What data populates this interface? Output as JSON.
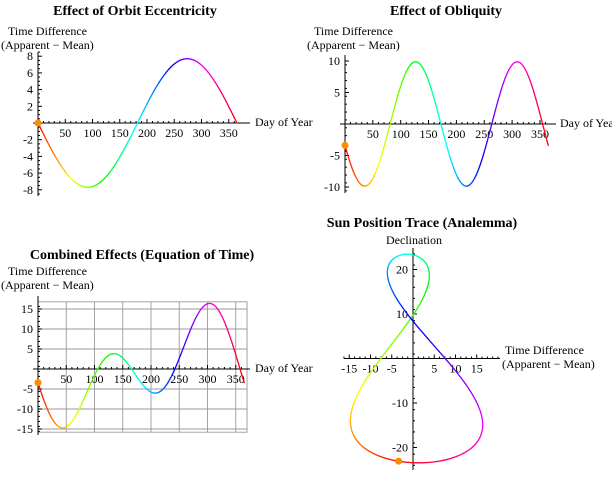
{
  "figure": {
    "background": "#ffffff",
    "text_color": "#000000",
    "axis_color": "#000000",
    "grid_color": "#999999",
    "marker_color": "#FF8C00",
    "color_mode_note": "curves colored by rainbow hue over day of year: day 0 = red, ~60 yellow, ~120 green, ~180 cyan, ~240 blue, ~300 magenta, 365 red"
  },
  "chart_data": [
    {
      "id": "orbit-eccentricity",
      "type": "line",
      "title": "Effect of Orbit Eccentricity",
      "ylabel_lines": [
        "Time Difference",
        "(Apparent − Mean)"
      ],
      "xlabel": "Day of Year",
      "xlim": [
        0,
        365
      ],
      "ylim": [
        -8.5,
        8.5
      ],
      "xticks": [
        50,
        100,
        150,
        200,
        250,
        300,
        350
      ],
      "yticks": [
        -8,
        -6,
        -4,
        -2,
        2,
        4,
        6,
        8
      ],
      "grid": false,
      "domain_days": [
        0,
        365
      ],
      "series": {
        "name": "eccentricity_effect_minutes",
        "terms": [
          {
            "amp": -7.7,
            "period": 365,
            "phase": 0
          }
        ]
      },
      "key_points": [
        [
          0,
          0
        ],
        [
          91,
          -7.7
        ],
        [
          182.5,
          0
        ],
        [
          274,
          7.7
        ],
        [
          365,
          0
        ]
      ],
      "marker": {
        "day": 0,
        "x": 0,
        "y": 0,
        "color": "#FF8C00"
      }
    },
    {
      "id": "obliquity",
      "type": "line",
      "title": "Effect of Obliquity",
      "ylabel_lines": [
        "Time Difference",
        "(Apparent − Mean)"
      ],
      "xlabel": "Day of Year",
      "xlim": [
        0,
        365
      ],
      "ylim": [
        -10.5,
        10.5
      ],
      "xticks": [
        50,
        100,
        150,
        200,
        250,
        300,
        350
      ],
      "yticks": [
        -10,
        -5,
        5,
        10
      ],
      "grid": false,
      "domain_days": [
        0,
        365
      ],
      "series": {
        "name": "obliquity_effect_minutes",
        "terms": [
          {
            "amp": 9.87,
            "period": 182.5,
            "phase": 81
          }
        ]
      },
      "key_points": [
        [
          0,
          -3.4
        ],
        [
          35.5,
          -9.87
        ],
        [
          81,
          0
        ],
        [
          126.5,
          9.87
        ],
        [
          172,
          0
        ],
        [
          217.5,
          -9.87
        ],
        [
          263,
          0
        ],
        [
          308.5,
          9.87
        ],
        [
          354,
          0
        ],
        [
          365,
          -3.4
        ]
      ],
      "marker": {
        "day": 0,
        "x": 0,
        "y": -3.4,
        "color": "#FF8C00"
      }
    },
    {
      "id": "combined-equation-of-time",
      "type": "line",
      "title": "Combined Effects (Equation of Time)",
      "ylabel_lines": [
        "Time Difference",
        "(Apparent − Mean)"
      ],
      "xlabel": "Day of Year",
      "xlim": [
        0,
        365
      ],
      "ylim": [
        -15.8,
        16.8
      ],
      "xticks": [
        50,
        100,
        150,
        200,
        250,
        300,
        350
      ],
      "yticks": [
        -15,
        -10,
        -5,
        5,
        10,
        15
      ],
      "grid": true,
      "domain_days": [
        0,
        365
      ],
      "series": {
        "name": "equation_of_time_minutes",
        "terms": [
          {
            "amp": -7.7,
            "period": 365,
            "phase": 0
          },
          {
            "amp": 9.87,
            "period": 182.5,
            "phase": 81
          }
        ]
      },
      "key_points": [
        [
          0,
          -3.4
        ],
        [
          45,
          -14.8
        ],
        [
          104,
          0
        ],
        [
          134,
          3.9
        ],
        [
          165,
          0
        ],
        [
          205,
          -6.0
        ],
        [
          243,
          0
        ],
        [
          304,
          16.4
        ],
        [
          357,
          0
        ],
        [
          365,
          -3.4
        ]
      ],
      "marker": {
        "day": 0,
        "x": 0,
        "y": -3.4,
        "color": "#FF8C00"
      }
    },
    {
      "id": "analemma",
      "type": "parametric-line",
      "title": "Sun Position Trace (Analemma)",
      "ylabel": "Declination",
      "xlabel_lines": [
        "Time Difference",
        "(Apparent − Mean)"
      ],
      "xlim": [
        -16,
        17
      ],
      "ylim": [
        -24.5,
        24.5
      ],
      "xticks": [
        -15,
        -10,
        -5,
        5,
        10,
        15
      ],
      "yticks": [
        -20,
        -10,
        10,
        20
      ],
      "grid": false,
      "domain_days": [
        0,
        365
      ],
      "x_series": {
        "name": "equation_of_time_minutes",
        "terms": [
          {
            "amp": -7.7,
            "period": 365,
            "phase": 0
          },
          {
            "amp": 9.87,
            "period": 182.5,
            "phase": 81
          }
        ]
      },
      "y_series": {
        "name": "declination_degrees",
        "terms": [
          {
            "amp": 23.44,
            "period": 365,
            "phase": 81
          }
        ]
      },
      "key_points": [
        [
          -3.4,
          -23.1
        ],
        [
          -14.9,
          -13.3
        ],
        [
          -7.6,
          0.0
        ],
        [
          -1.4,
          23.4
        ],
        [
          7.4,
          0.2
        ],
        [
          16.4,
          -15.4
        ]
      ],
      "marker": {
        "day": 0,
        "x": -3.4,
        "y": -23.07,
        "color": "#FF8C00"
      }
    }
  ]
}
